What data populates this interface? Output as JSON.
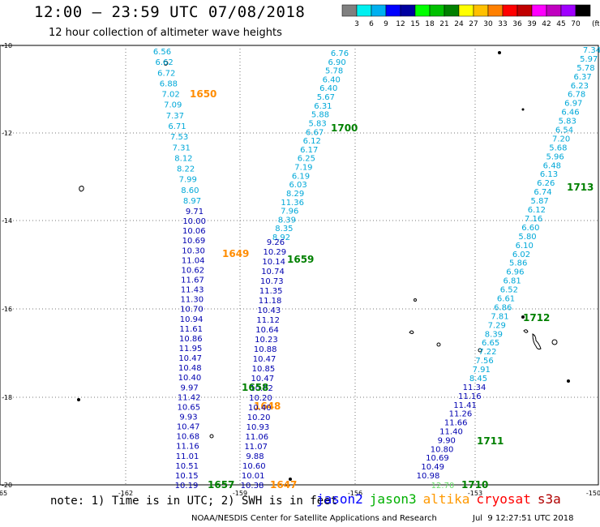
{
  "header": {
    "title": "12:00 – 23:59 UTC 07/08/2018",
    "subtitle": "12 hour collection of altimeter wave heights"
  },
  "colorbar": {
    "unit_label": "(ft)",
    "ticks": [
      "3",
      "6",
      "9",
      "12",
      "15",
      "18",
      "21",
      "24",
      "27",
      "30",
      "33",
      "36",
      "39",
      "42",
      "45",
      "70"
    ],
    "colors": [
      "#808080",
      "#00f0f0",
      "#00b0f0",
      "#0000ff",
      "#0000a0",
      "#00ff00",
      "#00c000",
      "#008000",
      "#ffff00",
      "#ffc000",
      "#ff8000",
      "#ff0000",
      "#c00000",
      "#ff00ff",
      "#c000c0",
      "#a000ff",
      "#000000"
    ]
  },
  "axes": {
    "x_ticks": [
      "-165",
      "-162",
      "-159",
      "-156",
      "-153",
      "-150"
    ],
    "y_ticks": [
      "-10",
      "-12",
      "-14",
      "-16",
      "-18",
      "-20"
    ],
    "lon_range": [
      -165,
      -150
    ],
    "lat_range": [
      -20,
      -10
    ]
  },
  "tracks": {
    "jason2_a": {
      "color": "#00a8d8",
      "pass_label": "1650",
      "pass_label_color": "#ff8c00",
      "values": [
        "6.56",
        "6.62",
        "6.72",
        "6.88",
        "7.02",
        "7.09",
        "7.37",
        "6.71",
        "7.53",
        "7.31",
        "8.12",
        "8.22",
        "7.99",
        "8.60",
        "8.97"
      ]
    },
    "jason2_a_dark": {
      "color": "#0000b0",
      "values": [
        "9.71",
        "10.00",
        "10.06",
        "10.69",
        "10.30",
        "11.04",
        "10.62",
        "11.67",
        "11.43",
        "11.30",
        "10.70",
        "10.94",
        "11.61",
        "10.86",
        "11.95",
        "10.47",
        "10.48",
        "10.40",
        "9.97",
        "11.42",
        "10.65",
        "9.93",
        "10.47",
        "10.68",
        "11.16",
        "11.01",
        "10.51",
        "10.15",
        "10.19"
      ]
    },
    "pass_1649": "1649",
    "pass_1648": "1648",
    "pass_1647": "1647",
    "jason3_b": {
      "color": "#00a8d8",
      "pass_label": "1700",
      "pass_label_color": "#008000",
      "values": [
        "6.76",
        "6.90",
        "5.78",
        "6.40",
        "6.40",
        "5.67",
        "6.31",
        "5.88",
        "5.83",
        "6.67",
        "6.12",
        "6.17",
        "6.25",
        "7.19",
        "6.19",
        "6.03",
        "8.29",
        "11.36",
        "7.96",
        "8.39",
        "8.35",
        "8.92"
      ]
    },
    "jason3_b_dark": {
      "color": "#0000b0",
      "values": [
        "9.26",
        "10.29",
        "10.14",
        "10.74",
        "10.73",
        "11.35",
        "11.18",
        "10.43",
        "11.12",
        "10.64",
        "10.23",
        "10.88",
        "10.47",
        "10.85",
        "10.47",
        "10.92",
        "10.20",
        "10.40",
        "10.20",
        "10.93",
        "11.06",
        "11.07",
        "9.88",
        "10.60",
        "10.01",
        "10.38"
      ]
    },
    "pass_1659": "1659",
    "pass_1658": "1658",
    "pass_1657": "1657",
    "east": {
      "color": "#00a8d8",
      "pass_label": "1713",
      "pass_label_color": "#008000",
      "values": [
        "7.34",
        "5.97",
        "5.78",
        "6.37",
        "6.23",
        "6.78",
        "6.97",
        "6.46",
        "5.83",
        "6.54",
        "7.20",
        "5.68",
        "5.96",
        "6.48",
        "6.13",
        "6.26",
        "6.74",
        "5.87",
        "6.12",
        "7.16",
        "6.60",
        "5.80",
        "6.10",
        "6.02",
        "5.86",
        "6.96",
        "6.81",
        "6.52",
        "6.61",
        "6.86",
        "7.81",
        "7.29",
        "8.39",
        "6.65",
        "7.22",
        "7.56",
        "7.91",
        "8.45"
      ]
    },
    "east_dark": {
      "color": "#0000b0",
      "values": [
        "11.34",
        "11.16",
        "11.41",
        "11.26",
        "11.66",
        "11.40",
        "9.90",
        "10.80",
        "10.69",
        "10.49",
        "10.98"
      ]
    },
    "pass_1712": "1712",
    "pass_1711": "1711",
    "pass_1710": "1710",
    "east_green_value": "12.70"
  },
  "footer": {
    "note": "note: 1) Time is in UTC; 2) SWH is in feet",
    "legend": [
      {
        "name": "jason2",
        "color": "#0000ff"
      },
      {
        "name": "jason3",
        "color": "#00b000"
      },
      {
        "name": "altika",
        "color": "#ff9900"
      },
      {
        "name": "cryosat",
        "color": "#ff0000"
      },
      {
        "name": "s3a",
        "color": "#b00000"
      }
    ],
    "credit": "NOAA/NESDIS Center for Satellite Applications and Research",
    "timestamp": "Jul  9 12:27:51 UTC 2018"
  }
}
